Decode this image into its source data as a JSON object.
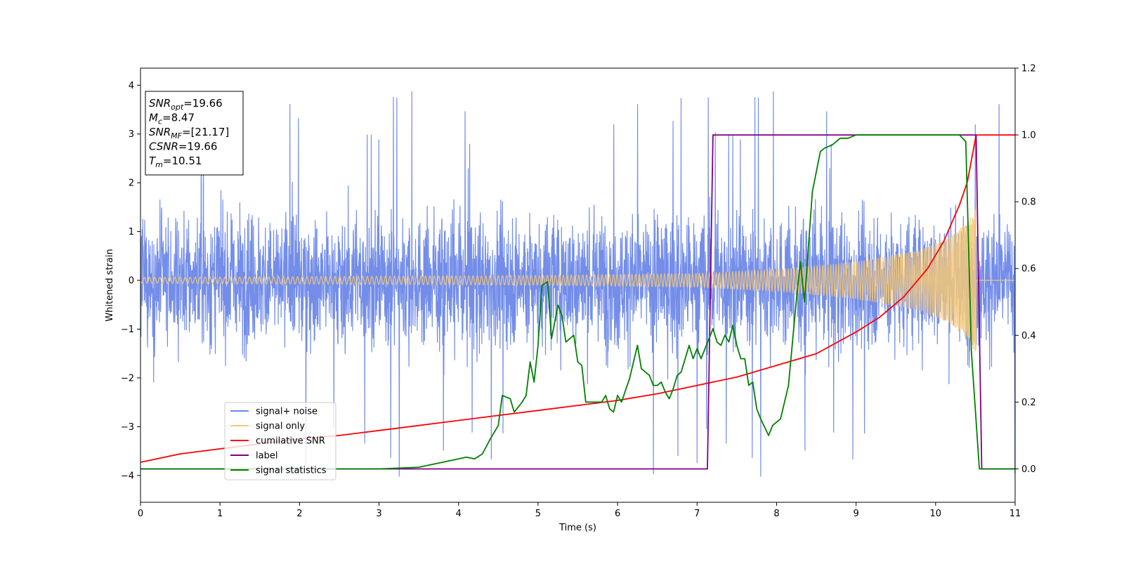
{
  "chart_data": {
    "type": "line",
    "xlabel": "Time (s)",
    "ylabel": "Whitened strain",
    "xlim": [
      0,
      11
    ],
    "ylim_left": [
      -4.55,
      4.35
    ],
    "ylim_right": [
      -0.1,
      1.2
    ],
    "x_ticks": [
      "0",
      "1",
      "2",
      "3",
      "4",
      "5",
      "6",
      "7",
      "8",
      "9",
      "10",
      "11"
    ],
    "y_ticks_left": [
      "−4",
      "−3",
      "−2",
      "−1",
      "0",
      "1",
      "2",
      "3",
      "4"
    ],
    "y_ticks_right": [
      "0.0",
      "0.2",
      "0.4",
      "0.6",
      "0.8",
      "1.0",
      "1.2"
    ],
    "legend_position": "lower-left",
    "info_box": {
      "position": "upper-left",
      "lines": [
        {
          "base": "SNR",
          "sub": "opt",
          "rest": "=19.66"
        },
        {
          "base": "M",
          "sub": "c",
          "rest": "=8.47"
        },
        {
          "base": "SNR",
          "sub": "MF",
          "rest": "=[21.17]"
        },
        {
          "base": "CSNR",
          "sub": "",
          "rest": "=19.66"
        },
        {
          "base": "T",
          "sub": "m",
          "rest": "=10.51"
        }
      ]
    },
    "series": [
      {
        "name": "signal+ noise",
        "color": "#6b87e8",
        "axis": "left",
        "kind": "noise",
        "noise_band": [
          -2.0,
          2.2
        ],
        "noise_extremes": [
          -4.15,
          3.95
        ],
        "duration": [
          0,
          11
        ]
      },
      {
        "name": "signal only",
        "color": "#f5c878",
        "axis": "left",
        "kind": "chirp",
        "chirp_end": 10.51,
        "amplitude_points": [
          [
            0,
            0.06
          ],
          [
            5,
            0.1
          ],
          [
            7,
            0.14
          ],
          [
            8,
            0.22
          ],
          [
            9,
            0.38
          ],
          [
            9.8,
            0.62
          ],
          [
            10.2,
            0.9
          ],
          [
            10.4,
            1.2
          ],
          [
            10.51,
            1.5
          ]
        ]
      },
      {
        "name": "cumilative SNR",
        "color": "#ff0000",
        "axis": "right",
        "x": [
          0,
          0.5,
          1,
          1.5,
          2,
          2.5,
          3,
          3.5,
          4,
          4.5,
          5,
          5.5,
          6,
          6.5,
          7,
          7.5,
          8,
          8.5,
          9,
          9.3,
          9.6,
          9.9,
          10.1,
          10.3,
          10.4,
          10.51,
          11
        ],
        "values": [
          0.02,
          0.045,
          0.06,
          0.075,
          0.09,
          0.1,
          0.115,
          0.13,
          0.145,
          0.16,
          0.175,
          0.19,
          0.205,
          0.225,
          0.25,
          0.275,
          0.31,
          0.345,
          0.41,
          0.455,
          0.515,
          0.6,
          0.68,
          0.79,
          0.86,
          1.0,
          1.0
        ]
      },
      {
        "name": "label",
        "color": "#800080",
        "axis": "right",
        "x": [
          0,
          7.13,
          7.2,
          10.51,
          10.58,
          11
        ],
        "values": [
          0.0,
          0.0,
          1.0,
          1.0,
          0.0,
          0.0
        ]
      },
      {
        "name": "signal statistics",
        "color": "#008000",
        "axis": "right",
        "x": [
          0,
          1,
          2,
          3,
          3.5,
          3.8,
          4.0,
          4.1,
          4.2,
          4.3,
          4.4,
          4.5,
          4.55,
          4.65,
          4.7,
          4.8,
          4.85,
          4.9,
          4.95,
          5.0,
          5.05,
          5.12,
          5.17,
          5.25,
          5.3,
          5.35,
          5.45,
          5.5,
          5.55,
          5.6,
          5.7,
          5.8,
          5.85,
          5.9,
          5.95,
          6.0,
          6.05,
          6.15,
          6.25,
          6.3,
          6.35,
          6.4,
          6.45,
          6.5,
          6.55,
          6.6,
          6.65,
          6.7,
          6.75,
          6.8,
          6.85,
          6.9,
          6.95,
          7.0,
          7.05,
          7.15,
          7.2,
          7.25,
          7.3,
          7.35,
          7.4,
          7.45,
          7.5,
          7.55,
          7.6,
          7.65,
          7.7,
          7.75,
          7.8,
          7.9,
          7.95,
          8.05,
          8.15,
          8.25,
          8.3,
          8.35,
          8.45,
          8.55,
          8.6,
          8.7,
          8.8,
          8.9,
          9.0,
          9.2,
          9.5,
          10.0,
          10.3,
          10.38,
          10.45,
          10.55,
          10.6,
          11
        ],
        "values": [
          0.0,
          0.0,
          0.0,
          0.0,
          0.005,
          0.02,
          0.03,
          0.035,
          0.03,
          0.045,
          0.09,
          0.13,
          0.22,
          0.21,
          0.17,
          0.2,
          0.22,
          0.32,
          0.26,
          0.37,
          0.55,
          0.56,
          0.39,
          0.49,
          0.46,
          0.38,
          0.4,
          0.32,
          0.31,
          0.2,
          0.2,
          0.2,
          0.22,
          0.18,
          0.17,
          0.22,
          0.2,
          0.27,
          0.37,
          0.3,
          0.29,
          0.28,
          0.25,
          0.25,
          0.26,
          0.23,
          0.21,
          0.24,
          0.28,
          0.29,
          0.33,
          0.37,
          0.33,
          0.36,
          0.33,
          0.39,
          0.42,
          0.38,
          0.37,
          0.4,
          0.38,
          0.43,
          0.37,
          0.33,
          0.33,
          0.25,
          0.26,
          0.18,
          0.15,
          0.1,
          0.13,
          0.15,
          0.25,
          0.51,
          0.62,
          0.5,
          0.83,
          0.95,
          0.96,
          0.97,
          0.99,
          0.99,
          1.0,
          1.0,
          1.0,
          1.0,
          1.0,
          0.98,
          0.35,
          0.0,
          0.0,
          0.0
        ]
      }
    ]
  }
}
